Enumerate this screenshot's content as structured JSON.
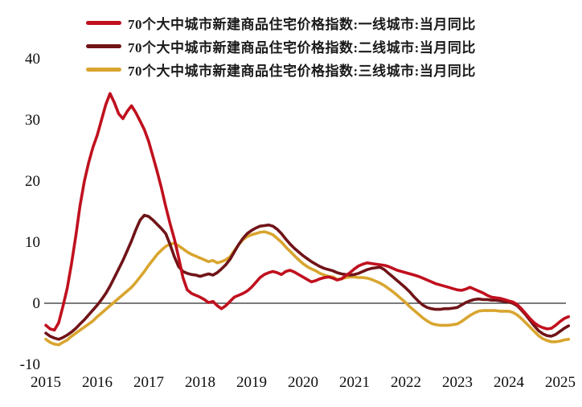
{
  "chart_data": {
    "type": "line",
    "title": "",
    "x_unit": "month",
    "x_range": [
      "2015-01",
      "2025-03"
    ],
    "x_tick_labels": [
      "2015",
      "2016",
      "2017",
      "2018",
      "2019",
      "2020",
      "2021",
      "2022",
      "2023",
      "2024",
      "2025"
    ],
    "y_ticks": [
      40,
      30,
      20,
      10,
      0,
      -10
    ],
    "ylim": [
      -10,
      44
    ],
    "grid": false,
    "zero_line": true,
    "legend_position": "top-left",
    "axis_color": "#2a2a2a",
    "series": [
      {
        "name": "70个大中城市新建商品住宅价格指数:一线城市:当月同比",
        "color": "#c0101e",
        "values": [
          -3.6,
          -4.2,
          -4.4,
          -3.2,
          -0.5,
          2.5,
          6.5,
          11.0,
          16.0,
          20.0,
          23.0,
          25.5,
          27.5,
          30.0,
          32.5,
          34.3,
          32.8,
          31.0,
          30.2,
          31.4,
          32.3,
          31.2,
          29.8,
          28.4,
          26.5,
          24.0,
          21.5,
          18.8,
          15.8,
          13.0,
          10.5,
          7.5,
          4.2,
          2.2,
          1.6,
          1.3,
          1.0,
          0.6,
          0.1,
          0.3,
          -0.4,
          -0.9,
          -0.4,
          0.3,
          1.0,
          1.3,
          1.6,
          2.0,
          2.6,
          3.4,
          4.2,
          4.7,
          5.0,
          5.2,
          5.0,
          4.7,
          5.2,
          5.4,
          5.1,
          4.7,
          4.3,
          3.9,
          3.5,
          3.7,
          4.0,
          4.2,
          4.3,
          4.1,
          3.8,
          4.0,
          4.5,
          5.0,
          5.6,
          6.1,
          6.4,
          6.6,
          6.5,
          6.4,
          6.3,
          6.2,
          6.0,
          5.7,
          5.4,
          5.2,
          5.0,
          4.8,
          4.6,
          4.4,
          4.1,
          3.8,
          3.5,
          3.2,
          3.0,
          2.8,
          2.6,
          2.4,
          2.2,
          2.1,
          2.3,
          2.6,
          2.3,
          2.0,
          1.7,
          1.3,
          1.0,
          0.9,
          0.8,
          0.6,
          0.4,
          0.2,
          -0.2,
          -0.9,
          -1.7,
          -2.5,
          -3.2,
          -3.7,
          -4.0,
          -4.2,
          -4.1,
          -3.6,
          -3.0,
          -2.5,
          -2.2
        ]
      },
      {
        "name": "70个大中城市新建商品住宅价格指数:二线城市:当月同比",
        "color": "#701418",
        "values": [
          -4.9,
          -5.4,
          -5.7,
          -5.9,
          -5.6,
          -5.2,
          -4.7,
          -4.1,
          -3.4,
          -2.7,
          -1.9,
          -1.1,
          -0.3,
          0.6,
          1.6,
          2.8,
          4.2,
          5.6,
          7.0,
          8.6,
          10.2,
          12.0,
          13.6,
          14.4,
          14.2,
          13.6,
          12.9,
          12.2,
          11.4,
          9.6,
          7.6,
          6.0,
          5.2,
          4.9,
          4.7,
          4.6,
          4.4,
          4.6,
          4.8,
          4.6,
          5.0,
          5.6,
          6.3,
          7.2,
          8.4,
          9.6,
          10.6,
          11.4,
          11.9,
          12.3,
          12.6,
          12.7,
          12.8,
          12.6,
          12.1,
          11.4,
          10.5,
          9.7,
          9.0,
          8.4,
          7.8,
          7.3,
          6.8,
          6.4,
          6.0,
          5.7,
          5.5,
          5.3,
          5.0,
          4.8,
          4.7,
          4.6,
          4.7,
          4.9,
          5.2,
          5.5,
          5.7,
          5.8,
          5.9,
          5.5,
          4.9,
          4.3,
          3.7,
          3.1,
          2.5,
          1.8,
          1.0,
          0.3,
          -0.3,
          -0.7,
          -0.9,
          -1.0,
          -1.0,
          -0.9,
          -0.9,
          -0.8,
          -0.7,
          -0.3,
          0.1,
          0.4,
          0.6,
          0.7,
          0.6,
          0.6,
          0.5,
          0.5,
          0.4,
          0.3,
          0.2,
          0.0,
          -0.4,
          -1.1,
          -1.9,
          -2.8,
          -3.7,
          -4.5,
          -5.0,
          -5.3,
          -5.4,
          -5.1,
          -4.6,
          -4.1,
          -3.7
        ]
      },
      {
        "name": "70个大中城市新建商品住宅价格指数:三线城市:当月同比",
        "color": "#d9a52f",
        "values": [
          -5.9,
          -6.4,
          -6.7,
          -6.8,
          -6.4,
          -6.0,
          -5.4,
          -4.9,
          -4.4,
          -3.9,
          -3.4,
          -2.9,
          -2.2,
          -1.6,
          -1.0,
          -0.4,
          0.2,
          0.8,
          1.4,
          2.0,
          2.6,
          3.4,
          4.3,
          5.2,
          6.2,
          7.1,
          8.0,
          8.7,
          9.3,
          9.7,
          9.8,
          9.4,
          8.9,
          8.4,
          8.0,
          7.7,
          7.4,
          7.1,
          6.8,
          7.0,
          6.6,
          6.8,
          7.1,
          7.6,
          8.6,
          9.6,
          10.4,
          10.9,
          11.2,
          11.4,
          11.6,
          11.7,
          11.5,
          11.2,
          10.6,
          10.0,
          9.2,
          8.5,
          7.8,
          7.1,
          6.5,
          6.0,
          5.6,
          5.3,
          4.9,
          4.6,
          4.4,
          4.3,
          3.9,
          4.0,
          4.2,
          4.3,
          4.3,
          4.2,
          4.2,
          4.1,
          3.9,
          3.6,
          3.3,
          2.9,
          2.4,
          1.9,
          1.3,
          0.7,
          0.1,
          -0.6,
          -1.2,
          -1.8,
          -2.4,
          -2.9,
          -3.3,
          -3.5,
          -3.6,
          -3.6,
          -3.6,
          -3.5,
          -3.4,
          -3.0,
          -2.5,
          -2.0,
          -1.6,
          -1.3,
          -1.2,
          -1.2,
          -1.2,
          -1.2,
          -1.3,
          -1.3,
          -1.3,
          -1.5,
          -1.9,
          -2.5,
          -3.2,
          -3.9,
          -4.6,
          -5.3,
          -5.8,
          -6.1,
          -6.3,
          -6.3,
          -6.2,
          -6.0,
          -5.9
        ]
      }
    ]
  }
}
